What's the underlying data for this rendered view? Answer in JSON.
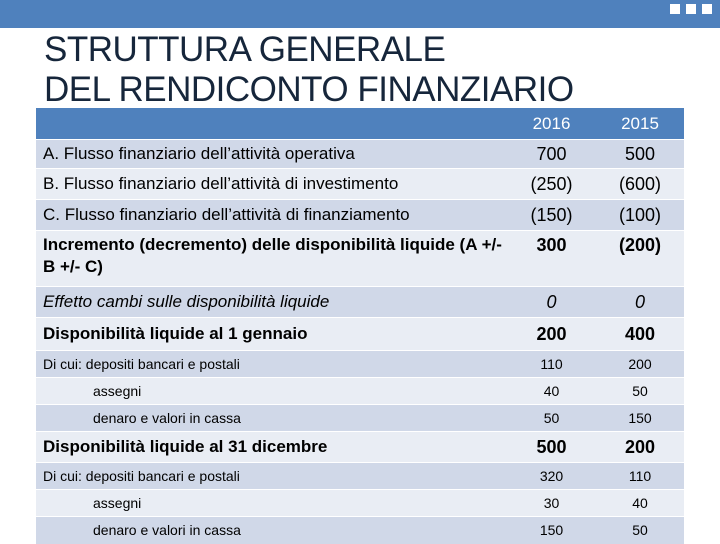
{
  "title": {
    "line1": "STRUTTURA GENERALE",
    "line2": "DEL RENDICONTO FINANZIARIO"
  },
  "table": {
    "header": {
      "label": "",
      "y2016": "2016",
      "y2015": "2015"
    },
    "rows": [
      {
        "label": "A. Flusso finanziario dell’attività operativa",
        "y2016": "700",
        "y2015": "500"
      },
      {
        "label": "B. Flusso finanziario dell’attività di investimento",
        "y2016": "(250)",
        "y2015": "(600)"
      },
      {
        "label": "C. Flusso finanziario dell’attività di finanziamento",
        "y2016": "(150)",
        "y2015": "(100)"
      },
      {
        "label": "Incremento (decremento) delle disponibilità liquide (A +/- B +/- C)",
        "y2016": "300",
        "y2015": "(200)"
      },
      {
        "label": "Effetto cambi sulle disponibilità liquide",
        "y2016": "0",
        "y2015": "0"
      },
      {
        "label": "Disponibilità liquide al 1 gennaio",
        "y2016": "200",
        "y2015": "400"
      },
      {
        "label": "Di cui: depositi bancari e postali",
        "y2016": "110",
        "y2015": "200"
      },
      {
        "label": "assegni",
        "y2016": "40",
        "y2015": "50"
      },
      {
        "label": "denaro e valori in cassa",
        "y2016": "50",
        "y2015": "150"
      },
      {
        "label": "Disponibilità liquide al 31 dicembre",
        "y2016": "500",
        "y2015": "200"
      },
      {
        "label": "Di cui: depositi bancari e postali",
        "y2016": "320",
        "y2015": "110"
      },
      {
        "label": "assegni",
        "y2016": "30",
        "y2015": "40"
      },
      {
        "label": "denaro e valori in cassa",
        "y2016": "150",
        "y2015": "50"
      }
    ]
  },
  "colors": {
    "accent": "#4f81bd",
    "row_odd": "#d0d8e8",
    "row_even": "#e9edf4",
    "title": "#16263b"
  }
}
